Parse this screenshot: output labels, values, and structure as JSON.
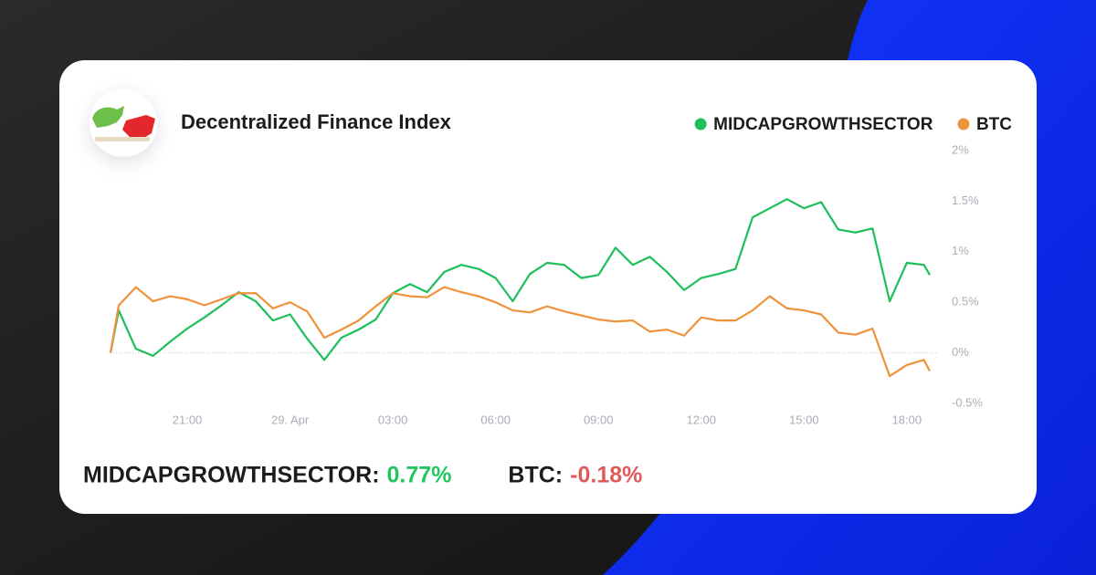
{
  "chart_data": {
    "type": "line",
    "title": "Decentralized Finance Index",
    "x": [
      -5.24,
      -5,
      -4.5,
      -4,
      -3.5,
      -3,
      -2.5,
      -2,
      -1.5,
      -1,
      -0.5,
      0,
      0.5,
      1,
      1.5,
      2,
      2.5,
      3,
      3.5,
      4,
      4.5,
      5,
      5.5,
      6,
      6.5,
      7,
      7.5,
      8,
      8.5,
      9,
      9.5,
      10,
      10.5,
      11,
      11.5,
      12,
      12.5,
      13,
      13.5,
      14,
      14.5,
      15,
      15.5,
      16,
      16.5,
      17,
      17.5,
      18,
      18.5,
      18.67
    ],
    "series": [
      {
        "name": "MIDCAPGROWTHSECTOR",
        "color": "#1dbf5a",
        "values": [
          0,
          0.42,
          0.04,
          -0.03,
          0.11,
          0.24,
          0.35,
          0.47,
          0.6,
          0.51,
          0.32,
          0.38,
          0.14,
          -0.07,
          0.15,
          0.23,
          0.33,
          0.59,
          0.68,
          0.6,
          0.8,
          0.87,
          0.83,
          0.74,
          0.51,
          0.78,
          0.89,
          0.87,
          0.74,
          0.77,
          1.04,
          0.87,
          0.95,
          0.8,
          0.62,
          0.74,
          0.78,
          0.83,
          1.34,
          1.43,
          1.52,
          1.43,
          1.49,
          1.22,
          1.19,
          1.23,
          0.51,
          0.89,
          0.87,
          0.77
        ]
      },
      {
        "name": "BTC",
        "color": "#f0923a",
        "values": [
          0,
          0.47,
          0.65,
          0.51,
          0.56,
          0.53,
          0.47,
          0.53,
          0.59,
          0.59,
          0.44,
          0.5,
          0.41,
          0.15,
          0.23,
          0.32,
          0.46,
          0.59,
          0.56,
          0.55,
          0.65,
          0.6,
          0.56,
          0.5,
          0.42,
          0.4,
          0.46,
          0.41,
          0.37,
          0.33,
          0.31,
          0.32,
          0.21,
          0.23,
          0.17,
          0.35,
          0.32,
          0.32,
          0.42,
          0.56,
          0.44,
          0.42,
          0.38,
          0.2,
          0.18,
          0.24,
          -0.23,
          -0.12,
          -0.07,
          -0.18
        ]
      }
    ],
    "xlim": [
      -5.24,
      18.67
    ],
    "xticks": [
      {
        "value": -3,
        "label": "21:00"
      },
      {
        "value": 0,
        "label": "29. Apr"
      },
      {
        "value": 3,
        "label": "03:00"
      },
      {
        "value": 6,
        "label": "06:00"
      },
      {
        "value": 9,
        "label": "09:00"
      },
      {
        "value": 12,
        "label": "12:00"
      },
      {
        "value": 15,
        "label": "15:00"
      },
      {
        "value": 18,
        "label": "18:00"
      }
    ],
    "ylim": [
      -0.5,
      2
    ],
    "yticks": [
      {
        "value": -0.5,
        "label": "-0.5%"
      },
      {
        "value": 0,
        "label": "0%"
      },
      {
        "value": 0.5,
        "label": "0.5%"
      },
      {
        "value": 1,
        "label": "1%"
      },
      {
        "value": 1.5,
        "label": "1.5%"
      },
      {
        "value": 2,
        "label": "2%"
      }
    ],
    "zero_line": true
  },
  "summary": [
    {
      "label": "MIDCAPGROWTHSECTOR:",
      "value": 0.77,
      "value_label": "0.77%",
      "color": "#22c55e"
    },
    {
      "label": "BTC:",
      "value": -0.18,
      "value_label": "-0.18%",
      "color": "#e05a5a"
    }
  ]
}
